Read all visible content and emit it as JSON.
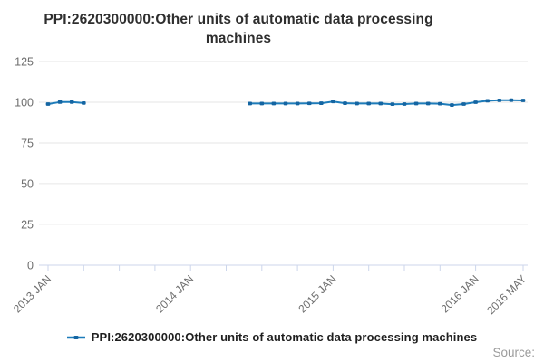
{
  "title": {
    "text": "PPI:2620300000:Other units of automatic data processing machines"
  },
  "legend": {
    "label": "PPI:2620300000:Other units of automatic data processing machines"
  },
  "source": {
    "label": "Source:"
  },
  "colors": {
    "line": "#1d7cba",
    "marker": "#1465a2",
    "grid": "#e6e6e6",
    "axis": "#ccd6eb",
    "tick_label": "#6e6e6e",
    "title_text": "#2e2e2e"
  },
  "chart_data": {
    "type": "line",
    "title": "PPI:2620300000:Other units of automatic data processing machines",
    "xlabel": "",
    "ylabel": "",
    "ylim": [
      0,
      130
    ],
    "yticks": [
      0,
      25,
      50,
      75,
      100,
      125
    ],
    "grid": "horizontal",
    "legend_position": "bottom",
    "categories": [
      "2013 JAN",
      "2013 FEB",
      "2013 MAR",
      "2013 APR",
      "2013 MAY",
      "2013 JUN",
      "2013 JUL",
      "2013 AUG",
      "2013 SEP",
      "2013 OCT",
      "2013 NOV",
      "2013 DEC",
      "2014 JAN",
      "2014 FEB",
      "2014 MAR",
      "2014 APR",
      "2014 MAY",
      "2014 JUN",
      "2014 JUL",
      "2014 AUG",
      "2014 SEP",
      "2014 OCT",
      "2014 NOV",
      "2014 DEC",
      "2015 JAN",
      "2015 FEB",
      "2015 MAR",
      "2015 APR",
      "2015 MAY",
      "2015 JUN",
      "2015 JUL",
      "2015 AUG",
      "2015 SEP",
      "2015 OCT",
      "2015 NOV",
      "2015 DEC",
      "2016 JAN",
      "2016 FEB",
      "2016 MAR",
      "2016 APR",
      "2016 MAY"
    ],
    "series": [
      {
        "name": "PPI:2620300000:Other units of automatic data processing machines",
        "values": [
          98.9,
          100.1,
          100.1,
          99.5,
          null,
          null,
          null,
          null,
          null,
          null,
          null,
          null,
          null,
          null,
          null,
          null,
          null,
          99.2,
          99.2,
          99.2,
          99.2,
          99.2,
          99.3,
          99.4,
          100.4,
          99.4,
          99.2,
          99.2,
          99.2,
          98.8,
          98.9,
          99.2,
          99.2,
          99.1,
          98.3,
          98.9,
          100.0,
          100.9,
          101.2,
          101.3,
          101.1
        ]
      }
    ],
    "xtick_mark_indices": [
      0,
      3,
      6,
      9,
      12,
      15,
      18,
      21,
      24,
      27,
      30,
      33,
      36,
      40
    ],
    "xtick_labels": [
      {
        "index": 0,
        "label": "2013 JAN"
      },
      {
        "index": 12,
        "label": "2014 JAN"
      },
      {
        "index": 24,
        "label": "2015 JAN"
      },
      {
        "index": 36,
        "label": "2016 JAN"
      },
      {
        "index": 40,
        "label": "2016 MAY"
      }
    ]
  }
}
